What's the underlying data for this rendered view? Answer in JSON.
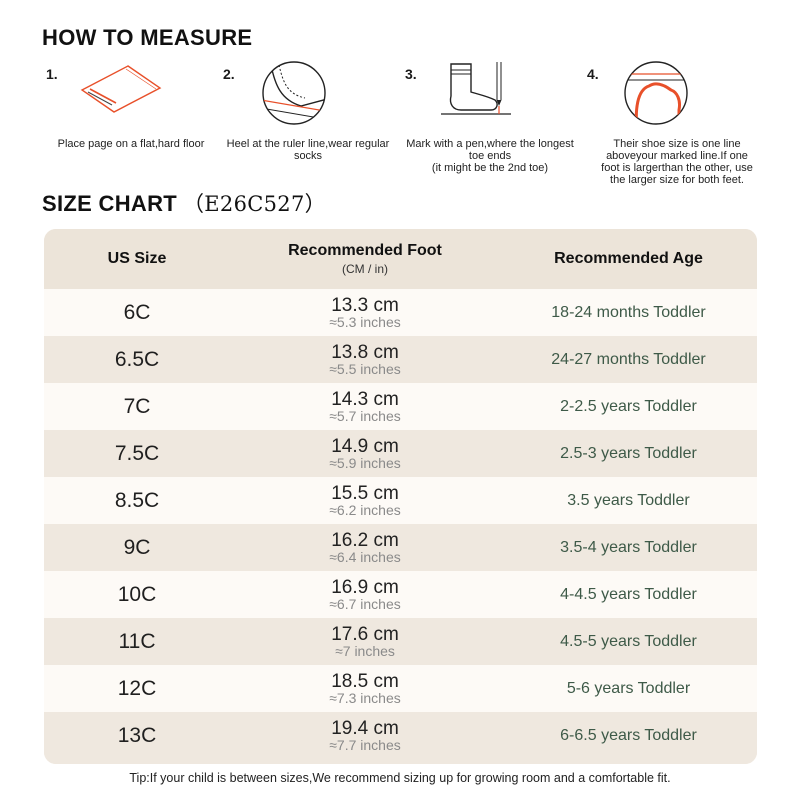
{
  "how_to_measure": {
    "title": "HOW TO MEASURE",
    "steps": [
      {
        "number": "1.",
        "icon": "paper-on-floor-icon",
        "caption": "Place page on a flat,hard floor"
      },
      {
        "number": "2.",
        "icon": "heel-ruler-icon",
        "caption": "Heel at the ruler line,wear regular socks"
      },
      {
        "number": "3.",
        "icon": "sock-pen-icon",
        "caption": "Mark with a pen,where the longest toe ends\n(it might be the 2nd toe)"
      },
      {
        "number": "4.",
        "icon": "foot-outline-icon",
        "caption": "Their shoe size is one line aboveyour marked line.If one foot is largerthan the other, use the larger size for both feet."
      }
    ]
  },
  "size_chart": {
    "title": "SIZE CHART",
    "code": "（E26C527）",
    "headers": {
      "us_size": "US Size",
      "foot": "Recommended Foot",
      "foot_unit": "(CM / in)",
      "age": "Recommended Age"
    },
    "rows": [
      {
        "size": "6C",
        "cm": "13.3 cm",
        "inch": "≈5.3 inches",
        "age": "18-24 months Toddler"
      },
      {
        "size": "6.5C",
        "cm": "13.8 cm",
        "inch": "≈5.5 inches",
        "age": "24-27 months Toddler"
      },
      {
        "size": "7C",
        "cm": "14.3 cm",
        "inch": "≈5.7 inches",
        "age": "2-2.5 years Toddler"
      },
      {
        "size": "7.5C",
        "cm": "14.9 cm",
        "inch": "≈5.9 inches",
        "age": "2.5-3 years Toddler"
      },
      {
        "size": "8.5C",
        "cm": "15.5 cm",
        "inch": "≈6.2 inches",
        "age": "3.5 years Toddler"
      },
      {
        "size": "9C",
        "cm": "16.2 cm",
        "inch": "≈6.4 inches",
        "age": "3.5-4 years Toddler"
      },
      {
        "size": "10C",
        "cm": "16.9 cm",
        "inch": "≈6.7 inches",
        "age": "4-4.5 years Toddler"
      },
      {
        "size": "11C",
        "cm": "17.6 cm",
        "inch": "≈7 inches",
        "age": "4.5-5 years Toddler"
      },
      {
        "size": "12C",
        "cm": "18.5 cm",
        "inch": "≈7.3 inches",
        "age": "5-6 years Toddler"
      },
      {
        "size": "13C",
        "cm": "19.4 cm",
        "inch": "≈7.7 inches",
        "age": "6-6.5 years Toddler"
      }
    ]
  },
  "tip": "Tip:If your child is between sizes,We recommend sizing up for growing room and a comfortable fit.",
  "colors": {
    "accent": "#e8502a",
    "table_header": "#ece4d9",
    "row_light": "#fdfaf6",
    "row_dark": "#efe8df",
    "age_text": "#3e5a48"
  }
}
